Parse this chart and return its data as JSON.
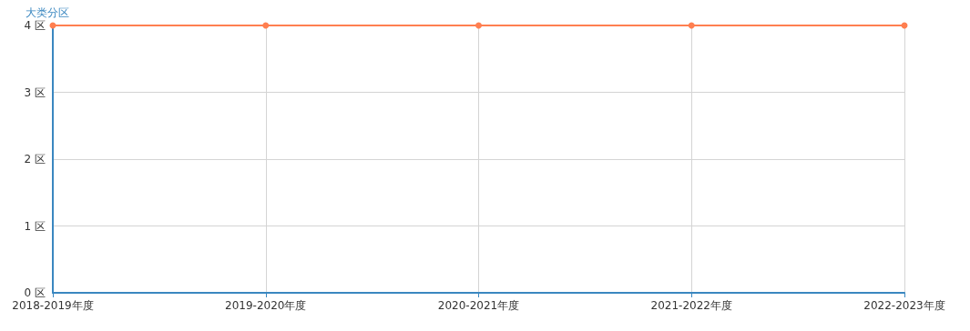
{
  "chart_data": {
    "type": "line",
    "ylabel": "大类分区",
    "categories": [
      "2018-2019年度",
      "2019-2020年度",
      "2020-2021年度",
      "2021-2022年度",
      "2022-2023年度"
    ],
    "series": [
      {
        "color": "#ff7f50",
        "values": [
          4,
          4,
          4,
          4,
          4
        ]
      }
    ],
    "ylim": [
      0,
      4
    ],
    "yticks": [
      {
        "value": 0,
        "label": "0 区"
      },
      {
        "value": 1,
        "label": "1 区"
      },
      {
        "value": 2,
        "label": "2 区"
      },
      {
        "value": 3,
        "label": "3 区"
      },
      {
        "value": 4,
        "label": "4 区"
      }
    ],
    "grid": true,
    "marker": "circle",
    "line_style": "solid"
  }
}
